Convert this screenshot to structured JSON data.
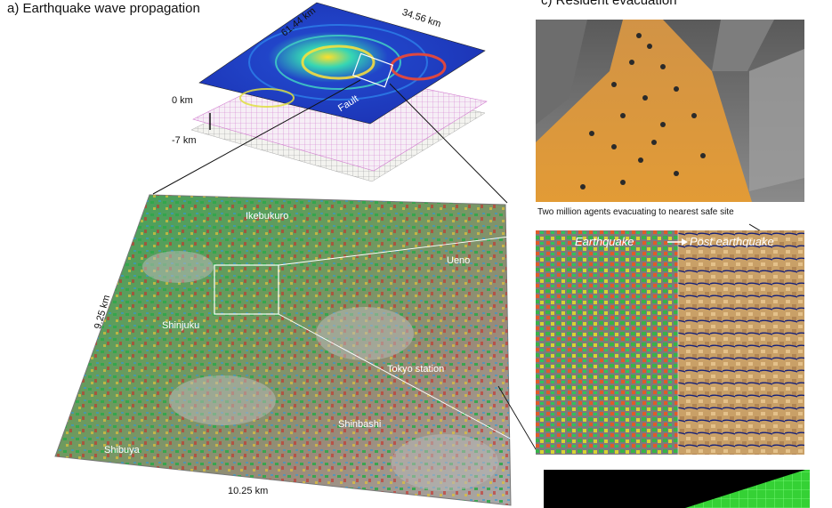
{
  "panels": {
    "a_title": "a) Earthquake wave propagation",
    "c_title": "c) Resident evacuation"
  },
  "wave_model": {
    "width_label": "61.44 km",
    "depth_label": "34.56 km",
    "top_depth": "0 km",
    "bottom_depth": "-7 km",
    "fault_label": "Fault"
  },
  "city_model": {
    "side_label": "9.25 km",
    "bottom_label": "10.25 km",
    "places": [
      "Ikebukuro",
      "Ueno",
      "Shinjuku",
      "Tokyo station",
      "Shinbashi",
      "Shibuya"
    ]
  },
  "evacuation": {
    "caption": "Two million agents evacuating to nearest safe site",
    "left_label": "Earthquake",
    "right_label": "Post earthquake"
  },
  "colors": {
    "wave_blue": "#1b2fb0",
    "ground": "#d7953b",
    "terrain_grey": "#8f8f8f",
    "mesh_green": "#3cff3c"
  }
}
